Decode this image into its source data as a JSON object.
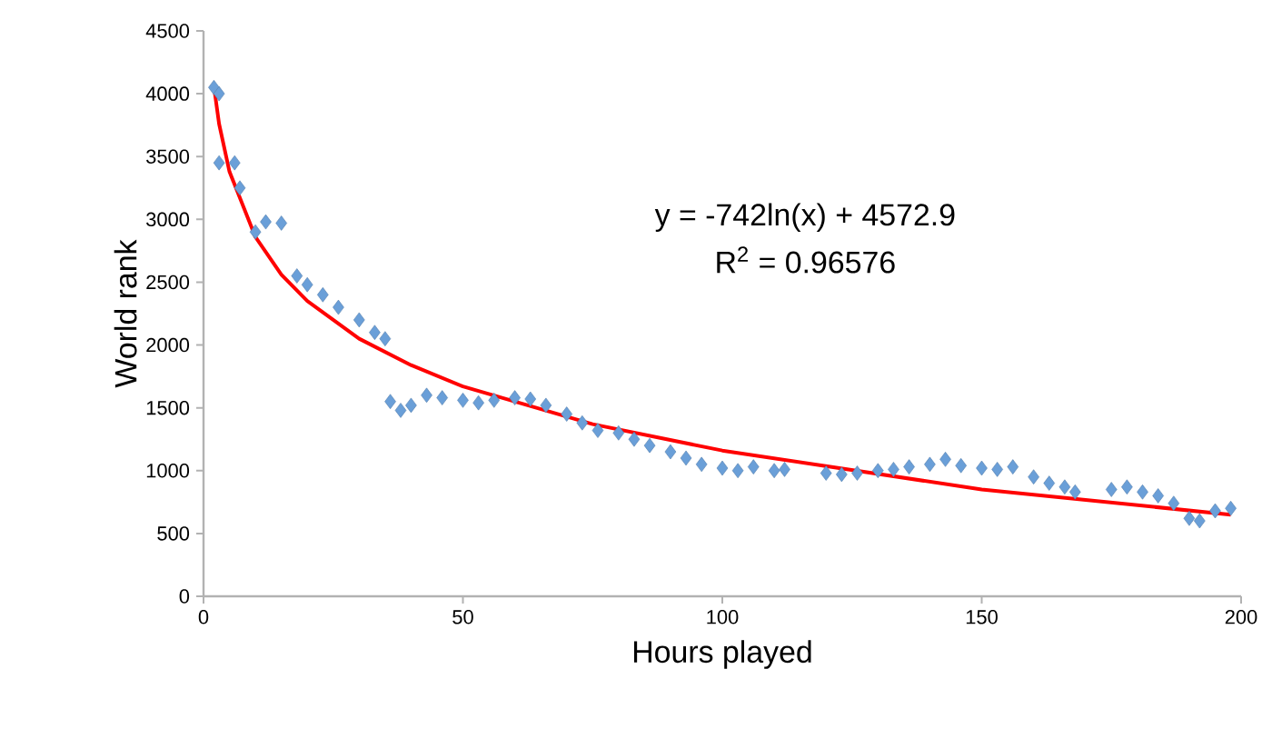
{
  "chart_data": {
    "type": "scatter",
    "xlabel": "Hours played",
    "ylabel": "World rank",
    "annotations": [
      "y = -742ln(x) + 4572.9",
      "R$^{2}$ = 0.96576"
    ],
    "xlim": [
      0,
      200
    ],
    "xticks": [
      0,
      50,
      100,
      150,
      200
    ],
    "ylim": [
      0,
      4500
    ],
    "yticks": [
      0,
      500,
      1000,
      1500,
      2000,
      2500,
      3000,
      3500,
      4000,
      4500
    ],
    "grid": false,
    "marker": "diamond",
    "series": [
      {
        "color": "#6a9fd8",
        "x": [
          2,
          3,
          3,
          6,
          7,
          10,
          12,
          15,
          18,
          20,
          23,
          26,
          30,
          33,
          35,
          36,
          38,
          40,
          43,
          46,
          50,
          53,
          56,
          60,
          63,
          66,
          70,
          73,
          76,
          80,
          83,
          86,
          90,
          93,
          96,
          100,
          103,
          106,
          110,
          112,
          120,
          123,
          126,
          130,
          133,
          136,
          140,
          143,
          146,
          150,
          153,
          156,
          160,
          163,
          166,
          168,
          175,
          178,
          181,
          184,
          187,
          190,
          192,
          195,
          198
        ],
        "values": [
          4050,
          4000,
          3450,
          3450,
          3250,
          2900,
          2980,
          2970,
          2550,
          2480,
          2400,
          2300,
          2200,
          2100,
          2050,
          1550,
          1480,
          1520,
          1600,
          1580,
          1560,
          1540,
          1560,
          1580,
          1570,
          1520,
          1450,
          1380,
          1320,
          1300,
          1250,
          1200,
          1150,
          1100,
          1050,
          1020,
          1000,
          1030,
          1000,
          1010,
          980,
          970,
          980,
          1000,
          1010,
          1030,
          1050,
          1090,
          1040,
          1020,
          1010,
          1030,
          950,
          900,
          870,
          830,
          850,
          870,
          830,
          800,
          740,
          620,
          600,
          680,
          700
        ]
      },
      {
        "type": "line",
        "color": "#ff0000",
        "marker": "none",
        "x": [
          2,
          3,
          5,
          10,
          15,
          20,
          30,
          40,
          50,
          75,
          100,
          150,
          198
        ],
        "values": [
          4060,
          3760,
          3380,
          2860,
          2560,
          2350,
          2050,
          1840,
          1670,
          1370,
          1160,
          850,
          650
        ]
      }
    ]
  }
}
